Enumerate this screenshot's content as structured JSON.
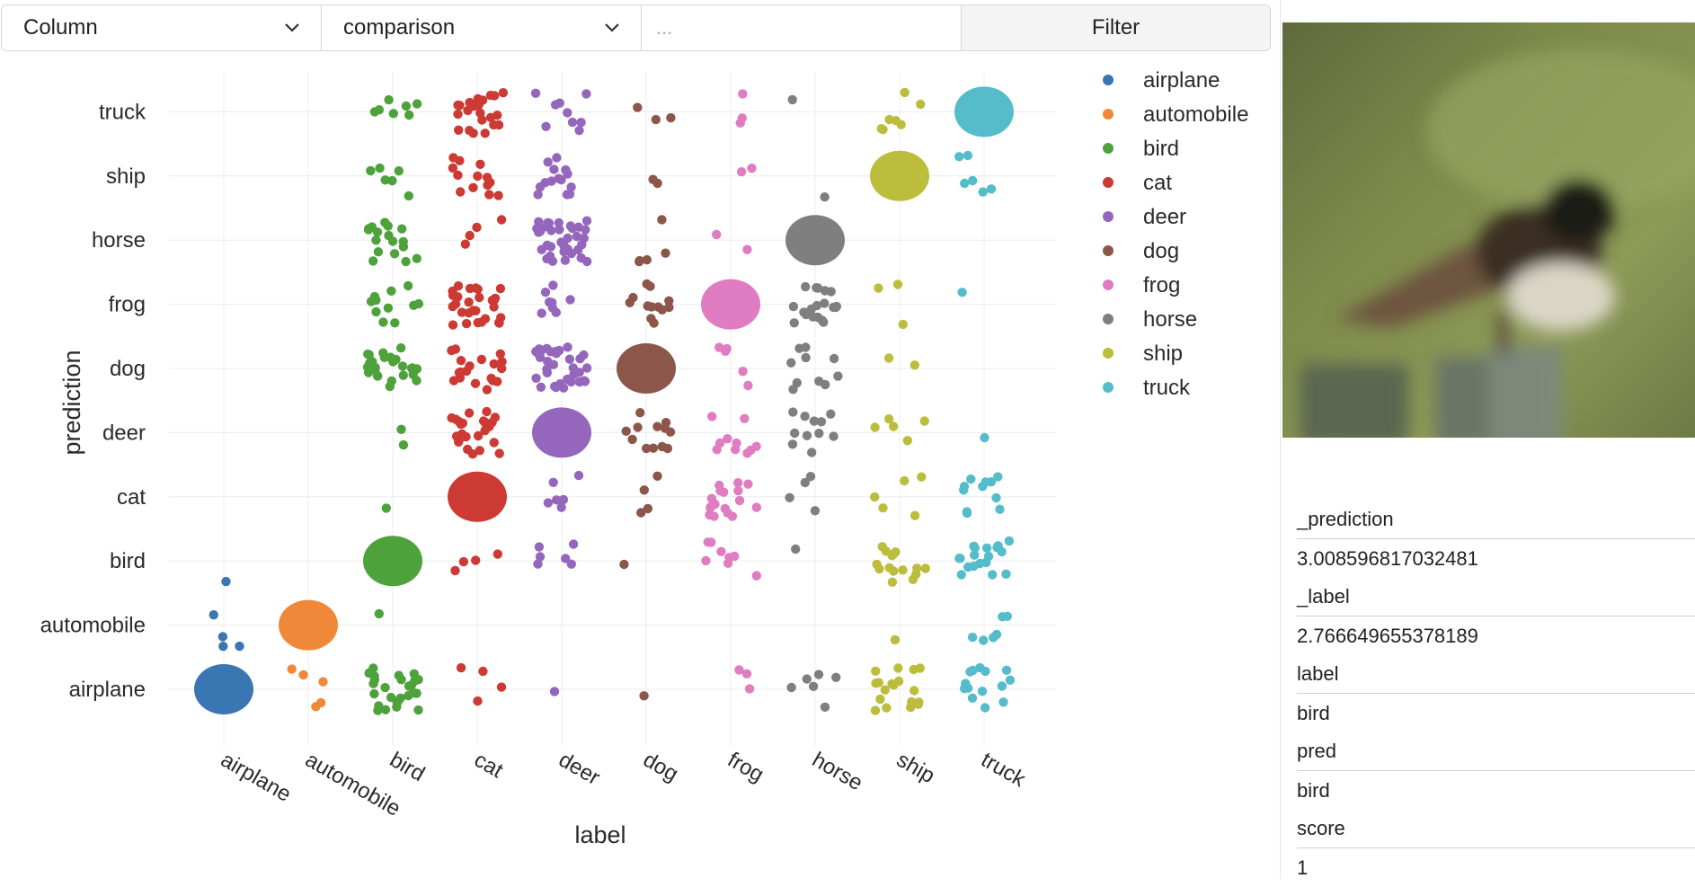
{
  "toolbar": {
    "column_label": "Column",
    "comparison_label": "comparison",
    "value_placeholder": "...",
    "filter_label": "Filter"
  },
  "chart_data": {
    "type": "scatter",
    "xlabel": "label",
    "ylabel": "prediction",
    "categories": [
      "airplane",
      "automobile",
      "bird",
      "cat",
      "deer",
      "dog",
      "frog",
      "horse",
      "ship",
      "truck"
    ],
    "legend_position": "top-right",
    "colors": {
      "airplane": "#3a76b2",
      "automobile": "#f0883a",
      "bird": "#4ea23c",
      "cat": "#cc3a33",
      "deer": "#9467bd",
      "dog": "#8c564b",
      "frog": "#e07cc2",
      "horse": "#7f7f7f",
      "ship": "#bcbd3c",
      "truck": "#55bccc"
    },
    "counts": [
      [
        999,
        4,
        1,
        0,
        0,
        0,
        0,
        0,
        0,
        0
      ],
      [
        5,
        999,
        0,
        0,
        0,
        0,
        0,
        0,
        0,
        0
      ],
      [
        26,
        1,
        999,
        1,
        2,
        25,
        11,
        17,
        6,
        7
      ],
      [
        4,
        0,
        4,
        999,
        25,
        19,
        28,
        4,
        13,
        22
      ],
      [
        1,
        0,
        6,
        6,
        999,
        33,
        9,
        37,
        14,
        9
      ],
      [
        1,
        0,
        1,
        4,
        12,
        999,
        12,
        5,
        2,
        3
      ],
      [
        3,
        0,
        8,
        17,
        10,
        5,
        999,
        2,
        2,
        3
      ],
      [
        6,
        0,
        1,
        4,
        11,
        10,
        20,
        999,
        1,
        1
      ],
      [
        18,
        1,
        15,
        5,
        5,
        2,
        3,
        0,
        999,
        7
      ],
      [
        14,
        6,
        18,
        11,
        1,
        0,
        1,
        0,
        6,
        999
      ]
    ]
  },
  "image": {
    "alt": "bird"
  },
  "fields": [
    {
      "key": "_prediction",
      "value": "3.008596817032481"
    },
    {
      "key": "_label",
      "value": "2.766649655378189"
    },
    {
      "key": "label",
      "value": "bird"
    },
    {
      "key": "pred",
      "value": "bird"
    },
    {
      "key": "score",
      "value": "1"
    }
  ]
}
